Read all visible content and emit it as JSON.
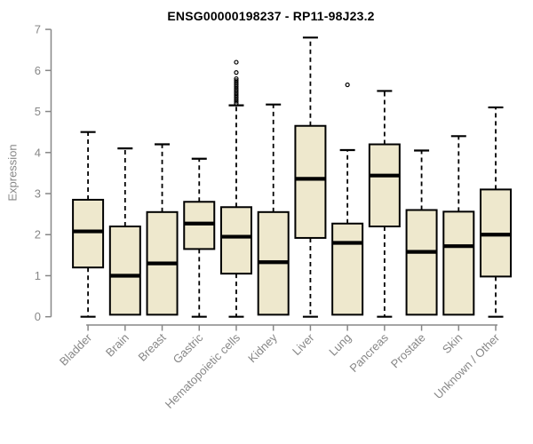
{
  "header": {
    "title": "ENSG00000198237 - RP11-98J23.2"
  },
  "chart_data": {
    "type": "boxplot",
    "title": "ENSG00000198237 - RP11-98J23.2",
    "xlabel": "",
    "ylabel": "Expression",
    "ylim": [
      0,
      7
    ],
    "yticks": [
      0,
      1,
      2,
      3,
      4,
      5,
      6,
      7
    ],
    "grid": false,
    "legend": "none",
    "categories": [
      "Bladder",
      "Brain",
      "Breast",
      "Gastric",
      "Hematopoietic cells",
      "Kidney",
      "Liver",
      "Lung",
      "Pancreas",
      "Prostate",
      "Skin",
      "Unknown / Other"
    ],
    "series": [
      {
        "name": "Bladder",
        "whisker_low": 0,
        "q1": 1.2,
        "median": 2.08,
        "q3": 2.85,
        "whisker_high": 4.5,
        "outliers": []
      },
      {
        "name": "Brain",
        "whisker_low": 0,
        "q1": 0.05,
        "median": 1.0,
        "q3": 2.2,
        "whisker_high": 4.1,
        "outliers": []
      },
      {
        "name": "Breast",
        "whisker_low": 0,
        "q1": 0.05,
        "median": 1.3,
        "q3": 2.55,
        "whisker_high": 4.2,
        "outliers": []
      },
      {
        "name": "Gastric",
        "whisker_low": 0,
        "q1": 1.65,
        "median": 2.27,
        "q3": 2.8,
        "whisker_high": 3.85,
        "outliers": []
      },
      {
        "name": "Hematopoietic cells",
        "whisker_low": 0,
        "q1": 1.05,
        "median": 1.95,
        "q3": 2.67,
        "whisker_high": 5.15,
        "outliers": [
          5.2,
          5.25,
          5.3,
          5.35,
          5.4,
          5.45,
          5.5,
          5.55,
          5.6,
          5.65,
          5.7,
          5.75,
          5.8,
          5.95,
          6.2
        ]
      },
      {
        "name": "Kidney",
        "whisker_low": 0,
        "q1": 0.05,
        "median": 1.33,
        "q3": 2.55,
        "whisker_high": 5.17,
        "outliers": []
      },
      {
        "name": "Liver",
        "whisker_low": 0,
        "q1": 1.92,
        "median": 3.36,
        "q3": 4.65,
        "whisker_high": 6.8,
        "outliers": []
      },
      {
        "name": "Lung",
        "whisker_low": 0,
        "q1": 0.05,
        "median": 1.8,
        "q3": 2.27,
        "whisker_high": 4.06,
        "outliers": [
          5.65
        ]
      },
      {
        "name": "Pancreas",
        "whisker_low": 0,
        "q1": 2.2,
        "median": 3.44,
        "q3": 4.2,
        "whisker_high": 5.5,
        "outliers": []
      },
      {
        "name": "Prostate",
        "whisker_low": 0,
        "q1": 0.05,
        "median": 1.58,
        "q3": 2.6,
        "whisker_high": 4.05,
        "outliers": []
      },
      {
        "name": "Skin",
        "whisker_low": 0,
        "q1": 0.05,
        "median": 1.72,
        "q3": 2.56,
        "whisker_high": 4.4,
        "outliers": []
      },
      {
        "name": "Unknown / Other",
        "whisker_low": 0,
        "q1": 0.98,
        "median": 2.0,
        "q3": 3.1,
        "whisker_high": 5.1,
        "outliers": []
      }
    ],
    "colors": {
      "box_fill": "#EEE8CD",
      "box_stroke": "#000000",
      "median": "#000000",
      "whisker": "#000000",
      "axis": "#878787",
      "tick_label": "#878787",
      "title": "#000000",
      "background": "#ffffff"
    }
  }
}
